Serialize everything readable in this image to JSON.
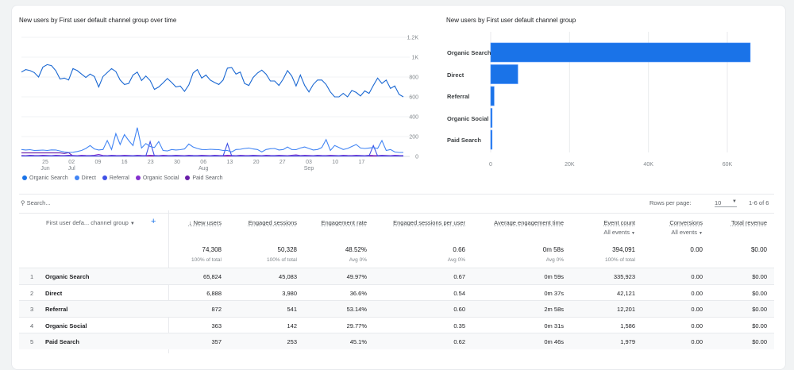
{
  "line_chart": {
    "title": "New users by First user default channel group over time",
    "y_ticks": [
      "0",
      "200",
      "400",
      "600",
      "800",
      "1K",
      "1.2K"
    ],
    "y_values": [
      0,
      200,
      400,
      600,
      800,
      1000,
      1200
    ],
    "x_ticks": [
      {
        "day": "25",
        "month": "Jun"
      },
      {
        "day": "02",
        "month": "Jul"
      },
      {
        "day": "09",
        "month": ""
      },
      {
        "day": "16",
        "month": ""
      },
      {
        "day": "23",
        "month": ""
      },
      {
        "day": "30",
        "month": ""
      },
      {
        "day": "06",
        "month": "Aug"
      },
      {
        "day": "13",
        "month": ""
      },
      {
        "day": "20",
        "month": ""
      },
      {
        "day": "27",
        "month": ""
      },
      {
        "day": "03",
        "month": "Sep"
      },
      {
        "day": "10",
        "month": ""
      },
      {
        "day": "17",
        "month": ""
      }
    ],
    "series": [
      {
        "name": "Organic Search",
        "color": "#1a73e8",
        "line": "#1967d2",
        "values": [
          850,
          875,
          865,
          845,
          800,
          900,
          925,
          915,
          865,
          780,
          790,
          770,
          885,
          865,
          830,
          795,
          830,
          805,
          700,
          805,
          845,
          885,
          855,
          770,
          725,
          735,
          820,
          850,
          765,
          810,
          765,
          675,
          700,
          740,
          785,
          745,
          700,
          710,
          655,
          720,
          840,
          875,
          790,
          820,
          770,
          745,
          725,
          770,
          890,
          895,
          830,
          850,
          735,
          715,
          795,
          840,
          870,
          830,
          760,
          760,
          715,
          780,
          865,
          810,
          710,
          820,
          715,
          650,
          725,
          770,
          770,
          725,
          650,
          600,
          600,
          635,
          600,
          665,
          645,
          610,
          660,
          635,
          715,
          790,
          735,
          770,
          685,
          710,
          625,
          600
        ]
      },
      {
        "name": "Direct",
        "color": "#4285f4",
        "line": "#4285f4",
        "values": [
          70,
          65,
          68,
          60,
          62,
          64,
          60,
          66,
          65,
          55,
          45,
          40,
          42,
          50,
          60,
          80,
          110,
          75,
          65,
          70,
          160,
          70,
          230,
          120,
          220,
          160,
          110,
          290,
          85,
          130,
          100,
          90,
          150,
          60,
          55,
          70,
          65,
          68,
          75,
          125,
          95,
          80,
          70,
          68,
          72,
          70,
          68,
          60,
          60,
          45,
          70,
          72,
          80,
          85,
          75,
          70,
          45,
          70,
          78,
          80,
          65,
          70,
          95,
          70,
          68,
          85,
          95,
          80,
          65,
          70,
          90,
          170,
          60,
          110,
          90,
          70,
          80,
          100,
          120,
          85,
          80,
          85,
          90,
          80,
          160,
          60,
          70,
          45,
          40,
          40
        ]
      },
      {
        "name": "Referral",
        "color": "#3f51e6",
        "line": "#3f51e6",
        "values": [
          5,
          4,
          6,
          5,
          5,
          4,
          5,
          6,
          5,
          4,
          5,
          6,
          5,
          5,
          4,
          5,
          6,
          5,
          5,
          4,
          5,
          6,
          5,
          5,
          4,
          5,
          6,
          5,
          5,
          4,
          150,
          5,
          5,
          4,
          5,
          6,
          5,
          5,
          4,
          5,
          6,
          5,
          5,
          4,
          5,
          6,
          5,
          5,
          130,
          6,
          5,
          5,
          4,
          5,
          6,
          5,
          5,
          4,
          5,
          6,
          5,
          5,
          4,
          5,
          6,
          5,
          5,
          4,
          5,
          6,
          5,
          5,
          4,
          5,
          6,
          5,
          5,
          4,
          5,
          6,
          5,
          5,
          110,
          5,
          6,
          5,
          5,
          4,
          5,
          6
        ]
      },
      {
        "name": "Organic Social",
        "color": "#8430ce",
        "line": "#8430ce",
        "values": [
          10,
          8,
          12,
          10,
          9,
          11,
          10,
          8,
          12,
          10,
          9,
          11,
          10,
          8,
          12,
          10,
          9,
          11,
          20,
          10,
          8,
          12,
          10,
          9,
          11,
          10,
          8,
          12,
          10,
          9,
          11,
          10,
          8,
          12,
          10,
          9,
          11,
          10,
          8,
          12,
          10,
          9,
          11,
          10,
          8,
          12,
          10,
          9,
          11,
          10,
          8,
          12,
          10,
          9,
          11,
          10,
          8,
          12,
          10,
          9,
          11,
          10,
          8,
          12,
          15,
          9,
          11,
          10,
          8,
          12,
          10,
          9,
          11,
          10,
          8,
          12,
          10,
          9,
          11,
          10,
          8,
          12,
          10,
          9,
          11,
          10,
          8,
          12,
          10,
          9
        ]
      },
      {
        "name": "Paid Search",
        "color": "#681da8",
        "line": "#681da8",
        "values": [
          35,
          35,
          35,
          35,
          35,
          35,
          35,
          35,
          35,
          35,
          30,
          38,
          5,
          3,
          3,
          3,
          3,
          3,
          3,
          3,
          3,
          3,
          3,
          3,
          3,
          3,
          3,
          3,
          3,
          3,
          3,
          3,
          3,
          3,
          3,
          3,
          3,
          3,
          3,
          3,
          3,
          3,
          3,
          3,
          3,
          3,
          3,
          3,
          3,
          3,
          3,
          3,
          3,
          3,
          3,
          3,
          3,
          3,
          3,
          3,
          3,
          3,
          3,
          3,
          3,
          3,
          3,
          3,
          3,
          3,
          3,
          3,
          3,
          3,
          3,
          3,
          3,
          3,
          3,
          3,
          3,
          3,
          3,
          3,
          3,
          3,
          3,
          3,
          3,
          3
        ]
      }
    ]
  },
  "chart_data": [
    {
      "type": "line",
      "title": "New users by First user default channel group over time",
      "ylim": [
        0,
        1200
      ],
      "grid": true,
      "legend": "bottom-left",
      "x_range": [
        "Jun 18",
        "Sep 17"
      ]
    },
    {
      "type": "bar",
      "orientation": "horizontal",
      "title": "New users by First user default channel group",
      "categories": [
        "Organic Search",
        "Direct",
        "Referral",
        "Organic Social",
        "Paid Search"
      ],
      "values": [
        65824,
        6888,
        872,
        363,
        357
      ],
      "xlim": [
        0,
        66000
      ],
      "x_ticks": [
        "0",
        "20K",
        "40K",
        "60K"
      ],
      "x_tick_values": [
        0,
        20000,
        40000,
        60000
      ],
      "color": "#1a73e8",
      "grid": true
    }
  ],
  "table": {
    "search_placeholder": "Search...",
    "rows_per_page_label": "Rows per page:",
    "rows_per_page": "10",
    "pagination": "1-6 of 6",
    "dimension_header": "First user defa... channel group",
    "columns": [
      "New users",
      "Engaged sessions",
      "Engagement rate",
      "Engaged sessions per user",
      "Average engagement time",
      "Event count",
      "Conversions",
      "Total revenue"
    ],
    "sort_icon": "arrow-down-icon",
    "event_filter": "All events",
    "conv_filter": "All events",
    "totals": [
      "74,308",
      "50,328",
      "48.52%",
      "0.66",
      "0m 58s",
      "394,091",
      "0.00",
      "$0.00"
    ],
    "totals_sub": [
      "100% of total",
      "100% of total",
      "Avg 0%",
      "Avg 0%",
      "Avg 0%",
      "100% of total",
      "",
      ""
    ],
    "rows": [
      {
        "n": "1",
        "label": "Organic Search",
        "cells": [
          "65,824",
          "45,083",
          "49.97%",
          "0.67",
          "0m 59s",
          "335,923",
          "0.00",
          "$0.00"
        ]
      },
      {
        "n": "2",
        "label": "Direct",
        "cells": [
          "6,888",
          "3,980",
          "36.6%",
          "0.54",
          "0m 37s",
          "42,121",
          "0.00",
          "$0.00"
        ]
      },
      {
        "n": "3",
        "label": "Referral",
        "cells": [
          "872",
          "541",
          "53.14%",
          "0.60",
          "2m 58s",
          "12,201",
          "0.00",
          "$0.00"
        ]
      },
      {
        "n": "4",
        "label": "Organic Social",
        "cells": [
          "363",
          "142",
          "29.77%",
          "0.35",
          "0m 31s",
          "1,586",
          "0.00",
          "$0.00"
        ]
      },
      {
        "n": "5",
        "label": "Paid Search",
        "cells": [
          "357",
          "253",
          "45.1%",
          "0.62",
          "0m 46s",
          "1,979",
          "0.00",
          "$0.00"
        ]
      }
    ]
  }
}
